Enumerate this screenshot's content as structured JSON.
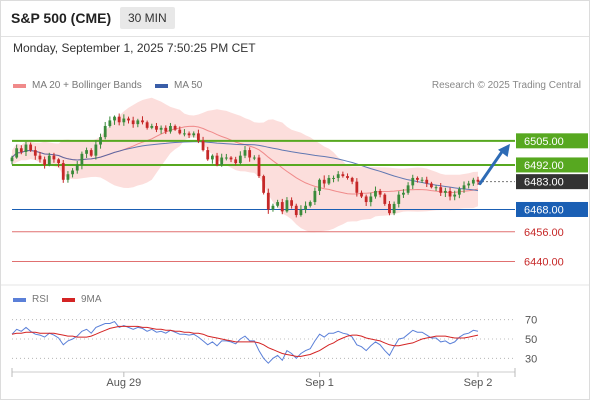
{
  "header": {
    "title": "S&P 500 (CME)",
    "timeframe": "30 MIN"
  },
  "datetime": "Monday, September 1, 2025 7:50:25 PM CET",
  "legend": {
    "bb_label": "MA 20 + Bollinger Bands",
    "ma50_label": "MA 50",
    "credit": "Research © 2025 Trading Central"
  },
  "rsi_legend": {
    "rsi_label": "RSI",
    "ma9_label": "9MA"
  },
  "colors": {
    "up": "#3a8a3a",
    "down": "#c62828",
    "ma20": "#f08a8a",
    "band": "#fbd3d0",
    "ma50": "#3a5ea8",
    "green_level": "#57a820",
    "blue_level": "#1a5fb4",
    "red_level": "#e07070",
    "arrow": "#2d6bb5",
    "rsi": "#5b80d8",
    "rsi_ma": "#d42424"
  },
  "chart_data": {
    "type": "candlestick",
    "ylim": [
      6430,
      6527
    ],
    "x_ticks": [
      "Aug 29",
      "Sep 1",
      "Sep 2"
    ],
    "levels": [
      {
        "value": 6505.0,
        "label": "6505.00",
        "kind": "resistance",
        "color": "#57a820"
      },
      {
        "value": 6492.0,
        "label": "6492.00",
        "kind": "resistance",
        "color": "#57a820"
      },
      {
        "value": 6483.0,
        "label": "6483.00",
        "kind": "last",
        "color": "#333333"
      },
      {
        "value": 6468.0,
        "label": "6468.00",
        "kind": "pivot",
        "color": "#1a5fb4"
      },
      {
        "value": 6456.0,
        "label": "6456.00",
        "kind": "support",
        "color": "#e07070"
      },
      {
        "value": 6440.0,
        "label": "6440.00",
        "kind": "support",
        "color": "#e07070"
      }
    ],
    "closes": [
      6496,
      6501,
      6499,
      6503,
      6500,
      6497,
      6495,
      6492,
      6497,
      6495,
      6493,
      6484,
      6487,
      6489,
      6492,
      6498,
      6500,
      6497,
      6503,
      6507,
      6513,
      6516,
      6518,
      6515,
      6517,
      6516,
      6514,
      6516,
      6515,
      6512,
      6513,
      6511,
      6512,
      6510,
      6513,
      6511,
      6509,
      6509,
      6508,
      6509,
      6505,
      6500,
      6495,
      6497,
      6492,
      6496,
      6496,
      6495,
      6493,
      6497,
      6500,
      6496,
      6496,
      6486,
      6477,
      6468,
      6470,
      6472,
      6467,
      6473,
      6470,
      6465,
      6468,
      6470,
      6472,
      6478,
      6484,
      6482,
      6485,
      6485,
      6487,
      6486,
      6485,
      6483,
      6477,
      6475,
      6472,
      6475,
      6478,
      6476,
      6471,
      6466,
      6471,
      6476,
      6477,
      6481,
      6485,
      6484,
      6484,
      6482,
      6480,
      6480,
      6477,
      6478,
      6475,
      6476,
      6479,
      6481,
      6482,
      6484,
      6483
    ],
    "rsi": {
      "ticks": [
        70,
        50,
        30
      ],
      "ylim": [
        20,
        80
      ],
      "values": [
        55,
        60,
        58,
        62,
        58,
        55,
        54,
        52,
        56,
        54,
        51,
        44,
        48,
        50,
        53,
        58,
        60,
        56,
        62,
        64,
        66,
        66,
        68,
        62,
        64,
        62,
        60,
        62,
        61,
        58,
        60,
        57,
        58,
        56,
        59,
        57,
        55,
        55,
        54,
        55,
        52,
        48,
        44,
        47,
        43,
        48,
        48,
        47,
        45,
        50,
        53,
        48,
        48,
        38,
        30,
        25,
        30,
        33,
        28,
        38,
        35,
        30,
        35,
        38,
        40,
        48,
        55,
        52,
        56,
        56,
        58,
        56,
        55,
        52,
        44,
        42,
        38,
        43,
        47,
        44,
        38,
        33,
        42,
        50,
        51,
        55,
        59,
        57,
        57,
        54,
        51,
        51,
        47,
        48,
        45,
        47,
        52,
        55,
        56,
        59,
        58
      ],
      "ma9": [
        55,
        56,
        56,
        57,
        57,
        57,
        56,
        56,
        56,
        56,
        55,
        54,
        53,
        53,
        52,
        52,
        52,
        53,
        55,
        57,
        59,
        61,
        62,
        63,
        63,
        63,
        63,
        63,
        62,
        62,
        61,
        60,
        60,
        59,
        59,
        58,
        58,
        57,
        57,
        56,
        56,
        55,
        53,
        52,
        51,
        50,
        49,
        48,
        47,
        47,
        47,
        47,
        47,
        46,
        44,
        41,
        39,
        37,
        35,
        34,
        33,
        32,
        32,
        33,
        34,
        36,
        38,
        41,
        44,
        46,
        49,
        51,
        53,
        54,
        54,
        53,
        51,
        50,
        49,
        48,
        46,
        44,
        43,
        43,
        44,
        45,
        46,
        48,
        50,
        51,
        52,
        53,
        53,
        53,
        52,
        51,
        51,
        51,
        52,
        53,
        54
      ]
    }
  }
}
